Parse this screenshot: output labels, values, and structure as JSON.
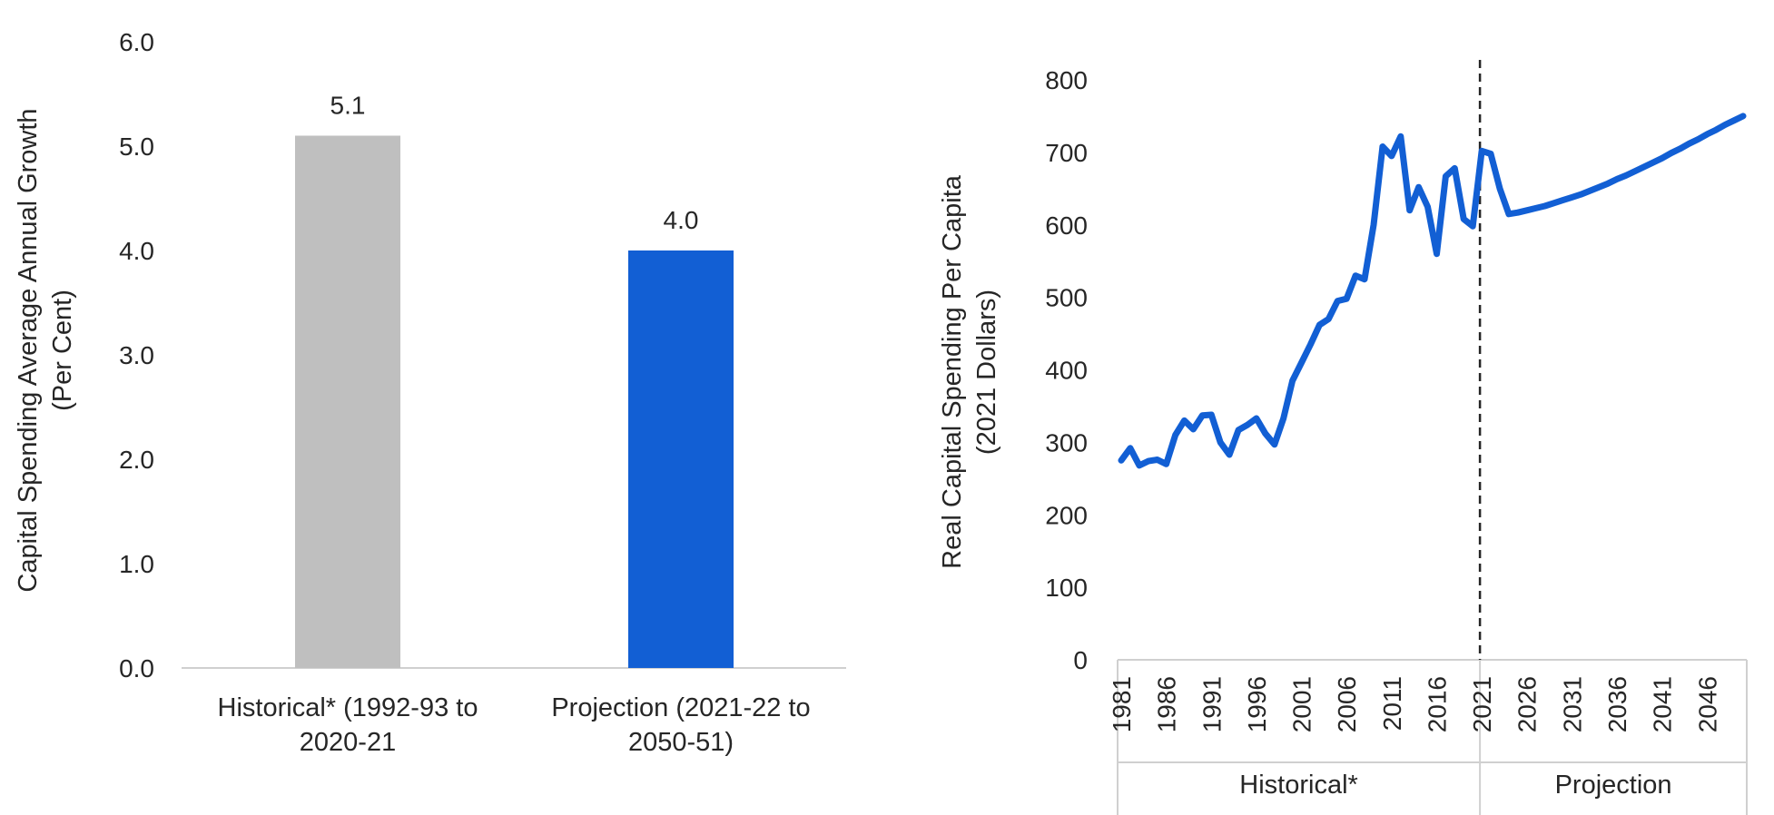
{
  "chart_data": [
    {
      "type": "bar",
      "ylabel": [
        "Capital Spending Average Annual Growth",
        "(Per Cent)"
      ],
      "ylim": [
        0,
        6
      ],
      "yticks": [
        "0.0",
        "1.0",
        "2.0",
        "3.0",
        "4.0",
        "5.0",
        "6.0"
      ],
      "categories": [
        [
          "Historical* (1992-93 to",
          "2020-21"
        ],
        [
          "Projection (2021-22 to",
          "2050-51)"
        ]
      ],
      "values": [
        5.1,
        4.0
      ],
      "data_labels": [
        "5.1",
        "4.0"
      ],
      "colors": [
        "#bfbfbf",
        "#125fd4"
      ],
      "grid": false
    },
    {
      "type": "line",
      "ylabel": [
        "Real Capital Spending Per Capita",
        "(2021 Dollars)"
      ],
      "ylim": [
        0,
        800
      ],
      "yticks": [
        "0",
        "100",
        "200",
        "300",
        "400",
        "500",
        "600",
        "700",
        "800"
      ],
      "xticks": [
        "1981",
        "1986",
        "1991",
        "1996",
        "2001",
        "2006",
        "2011",
        "2016",
        "2021",
        "2026",
        "2031",
        "2036",
        "2041",
        "2046"
      ],
      "x": [
        1981,
        1982,
        1983,
        1984,
        1985,
        1986,
        1987,
        1988,
        1989,
        1990,
        1991,
        1992,
        1993,
        1994,
        1995,
        1996,
        1997,
        1998,
        1999,
        2000,
        2001,
        2002,
        2003,
        2004,
        2005,
        2006,
        2007,
        2008,
        2009,
        2010,
        2011,
        2012,
        2013,
        2014,
        2015,
        2016,
        2017,
        2018,
        2019,
        2020,
        2021,
        2022,
        2023,
        2024,
        2025,
        2026,
        2027,
        2028,
        2029,
        2030,
        2031,
        2032,
        2033,
        2034,
        2035,
        2036,
        2037,
        2038,
        2039,
        2040,
        2041,
        2042,
        2043,
        2044,
        2045,
        2046,
        2047,
        2048,
        2049,
        2050
      ],
      "series": [
        {
          "values": [
            275,
            292,
            268,
            274,
            276,
            270,
            310,
            330,
            318,
            337,
            338,
            300,
            283,
            317,
            324,
            333,
            312,
            297,
            333,
            385,
            410,
            435,
            462,
            470,
            495,
            498,
            530,
            525,
            600,
            708,
            695,
            722,
            620,
            652,
            625,
            560,
            667,
            678,
            608,
            598,
            702,
            698,
            650,
            615,
            617,
            620,
            623,
            626,
            630,
            634,
            638,
            642,
            647,
            652,
            657,
            663,
            668,
            674,
            680,
            686,
            692,
            699,
            705,
            712,
            718,
            725,
            731,
            738,
            744,
            750
          ]
        }
      ],
      "line_color": "#125fd4",
      "divider_year": 2021,
      "groups": [
        {
          "label": "Historical*",
          "from": 1981,
          "to": 2020
        },
        {
          "label": "Projection",
          "from": 2021,
          "to": 2050
        }
      ],
      "grid": false
    }
  ]
}
